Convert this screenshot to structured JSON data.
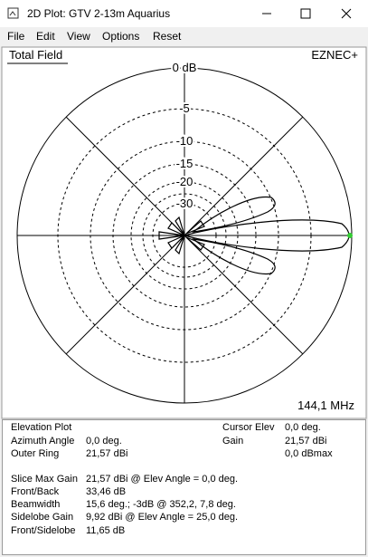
{
  "window": {
    "title": "2D Plot: GTV 2-13m Aquarius"
  },
  "menu": [
    "File",
    "Edit",
    "View",
    "Options",
    "Reset"
  ],
  "plot": {
    "label": "Total Field",
    "brand": "EZNEC+",
    "ring_labels": [
      "0 dB",
      "-5",
      "-10",
      "-15",
      "-20",
      "-30"
    ],
    "frequency": "144,1 MHz"
  },
  "info": {
    "plot_kind": "Elevation Plot",
    "left": [
      {
        "label": "Azimuth Angle",
        "value": "0,0 deg."
      },
      {
        "label": "Outer Ring",
        "value": "21,57 dBi"
      }
    ],
    "right": [
      {
        "label": "Cursor Elev",
        "value": "0,0 deg."
      },
      {
        "label": "Gain",
        "value": "21,57 dBi"
      },
      {
        "label": "",
        "value": "0,0 dBmax"
      }
    ],
    "summary": [
      {
        "label": "Slice Max Gain",
        "value": "21,57 dBi @ Elev Angle = 0,0 deg."
      },
      {
        "label": "Front/Back",
        "value": "33,46 dB"
      },
      {
        "label": "Beamwidth",
        "value": "15,6 deg.; -3dB @ 352,2, 7,8 deg."
      },
      {
        "label": "Sidelobe Gain",
        "value": "9,92 dBi @ Elev Angle = 25,0 deg."
      },
      {
        "label": "Front/Sidelobe",
        "value": "11,65 dB"
      }
    ]
  }
}
